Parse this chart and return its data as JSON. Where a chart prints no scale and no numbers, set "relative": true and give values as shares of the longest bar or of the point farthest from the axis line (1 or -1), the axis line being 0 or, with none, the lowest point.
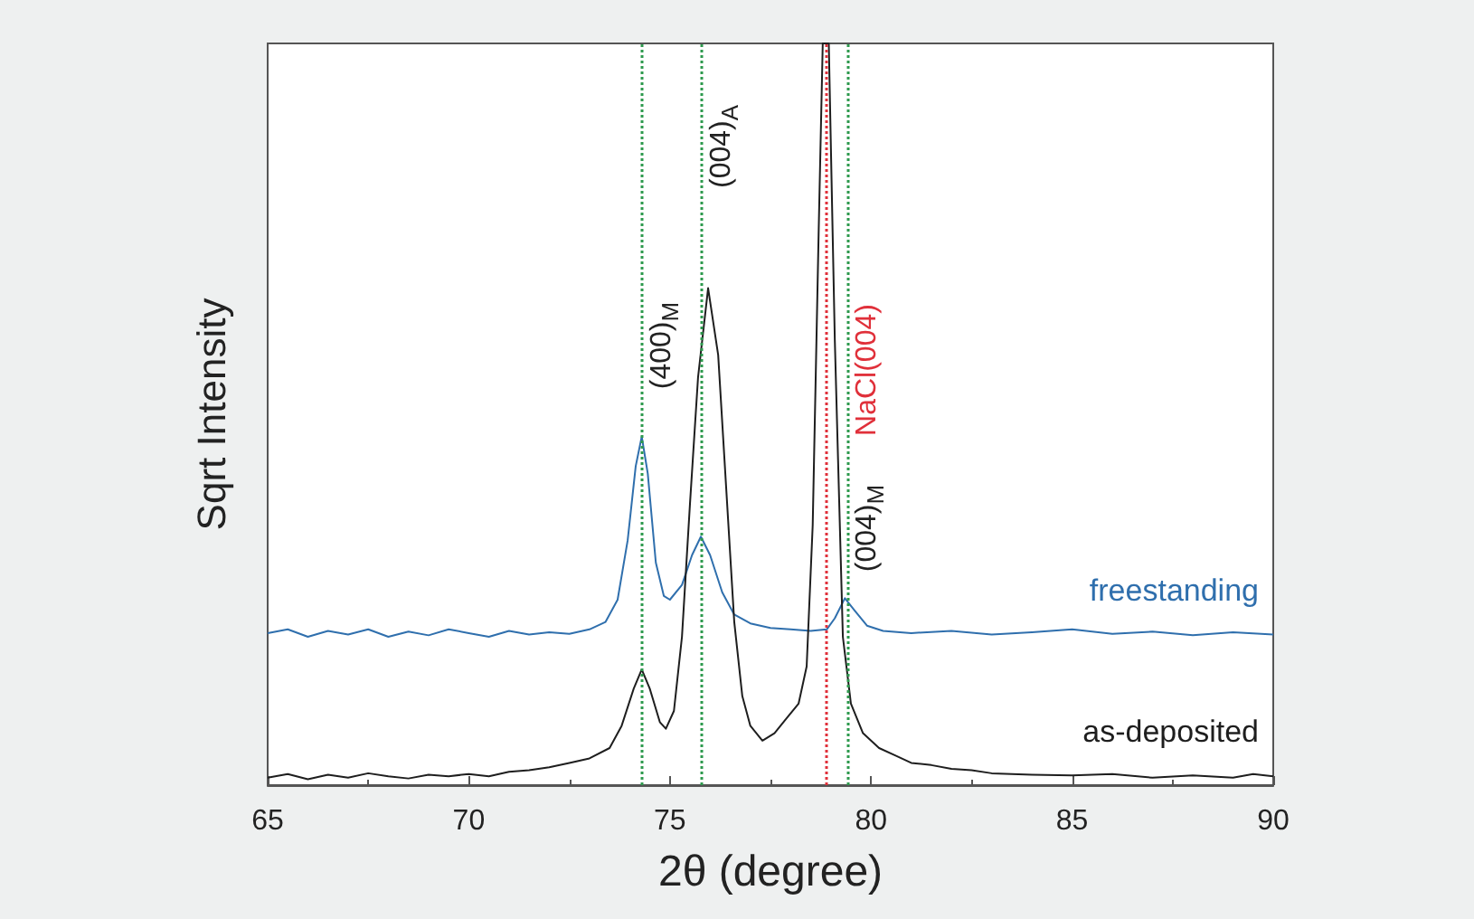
{
  "chart_data": {
    "type": "line",
    "relative": true,
    "xlabel": "2θ (degree)",
    "ylabel": "Sqrt Intensity",
    "xlim": [
      65,
      90
    ],
    "xticks": [
      65,
      70,
      75,
      80,
      85,
      90
    ],
    "marker": "none",
    "line_style": "solid",
    "series": [
      {
        "name": "freestanding",
        "color": "#2f6fad",
        "x": [
          65,
          65.5,
          66,
          66.5,
          67,
          67.5,
          68,
          68.5,
          69,
          69.5,
          70,
          70.5,
          71,
          71.5,
          72,
          72.5,
          73,
          73.4,
          73.7,
          73.95,
          74.15,
          74.3,
          74.45,
          74.65,
          74.85,
          75,
          75.3,
          75.55,
          75.77,
          76,
          76.3,
          76.6,
          77,
          77.5,
          78,
          78.5,
          78.9,
          79.1,
          79.35,
          79.6,
          79.9,
          80.3,
          81,
          82,
          83,
          84,
          85,
          86,
          87,
          88,
          89,
          90
        ],
        "values": [
          0.205,
          0.21,
          0.2,
          0.208,
          0.203,
          0.21,
          0.2,
          0.207,
          0.202,
          0.21,
          0.205,
          0.2,
          0.208,
          0.203,
          0.206,
          0.204,
          0.21,
          0.22,
          0.25,
          0.33,
          0.43,
          0.47,
          0.42,
          0.3,
          0.255,
          0.25,
          0.27,
          0.31,
          0.335,
          0.31,
          0.26,
          0.23,
          0.218,
          0.212,
          0.21,
          0.208,
          0.21,
          0.225,
          0.252,
          0.235,
          0.215,
          0.208,
          0.205,
          0.208,
          0.203,
          0.206,
          0.21,
          0.204,
          0.207,
          0.202,
          0.206,
          0.203
        ]
      },
      {
        "name": "as-deposited",
        "color": "#1e1e1e",
        "x": [
          65,
          65.5,
          66,
          66.5,
          67,
          67.5,
          68,
          68.5,
          69,
          69.5,
          70,
          70.5,
          71,
          71.5,
          72,
          72.5,
          73,
          73.5,
          73.8,
          74.1,
          74.3,
          74.5,
          74.75,
          74.9,
          75.1,
          75.3,
          75.5,
          75.7,
          75.95,
          76.2,
          76.4,
          76.6,
          76.8,
          77,
          77.3,
          77.6,
          77.9,
          78.2,
          78.4,
          78.55,
          78.7,
          78.8,
          78.95,
          79.1,
          79.3,
          79.5,
          79.8,
          80.2,
          80.6,
          81,
          81.5,
          82,
          82.5,
          83,
          84,
          85,
          86,
          87,
          88,
          89,
          89.5,
          90
        ],
        "values": [
          0.01,
          0.015,
          0.008,
          0.014,
          0.01,
          0.016,
          0.012,
          0.009,
          0.014,
          0.012,
          0.015,
          0.012,
          0.018,
          0.02,
          0.024,
          0.03,
          0.036,
          0.05,
          0.08,
          0.13,
          0.156,
          0.13,
          0.085,
          0.076,
          0.1,
          0.2,
          0.38,
          0.55,
          0.67,
          0.58,
          0.4,
          0.22,
          0.12,
          0.08,
          0.06,
          0.07,
          0.09,
          0.11,
          0.16,
          0.35,
          0.75,
          1,
          1,
          0.6,
          0.2,
          0.11,
          0.07,
          0.05,
          0.04,
          0.03,
          0.027,
          0.022,
          0.02,
          0.016,
          0.014,
          0.013,
          0.015,
          0.01,
          0.013,
          0.01,
          0.015,
          0.012
        ]
      }
    ],
    "ref_lines": [
      {
        "axis": "x",
        "value": 74.3,
        "color": "#2e9a4e",
        "line_style": "dotted",
        "label": "(400)$_{M}$"
      },
      {
        "axis": "x",
        "value": 75.8,
        "color": "#2e9a4e",
        "line_style": "dotted",
        "label": "(004)$_{A}$"
      },
      {
        "axis": "x",
        "value": 78.9,
        "color": "#e0303a",
        "line_style": "dotted",
        "label": "NaCl(004)"
      },
      {
        "axis": "x",
        "value": 79.4,
        "color": "#2e9a4e",
        "line_style": "dotted",
        "label": "(004)$_{M}$"
      }
    ]
  }
}
